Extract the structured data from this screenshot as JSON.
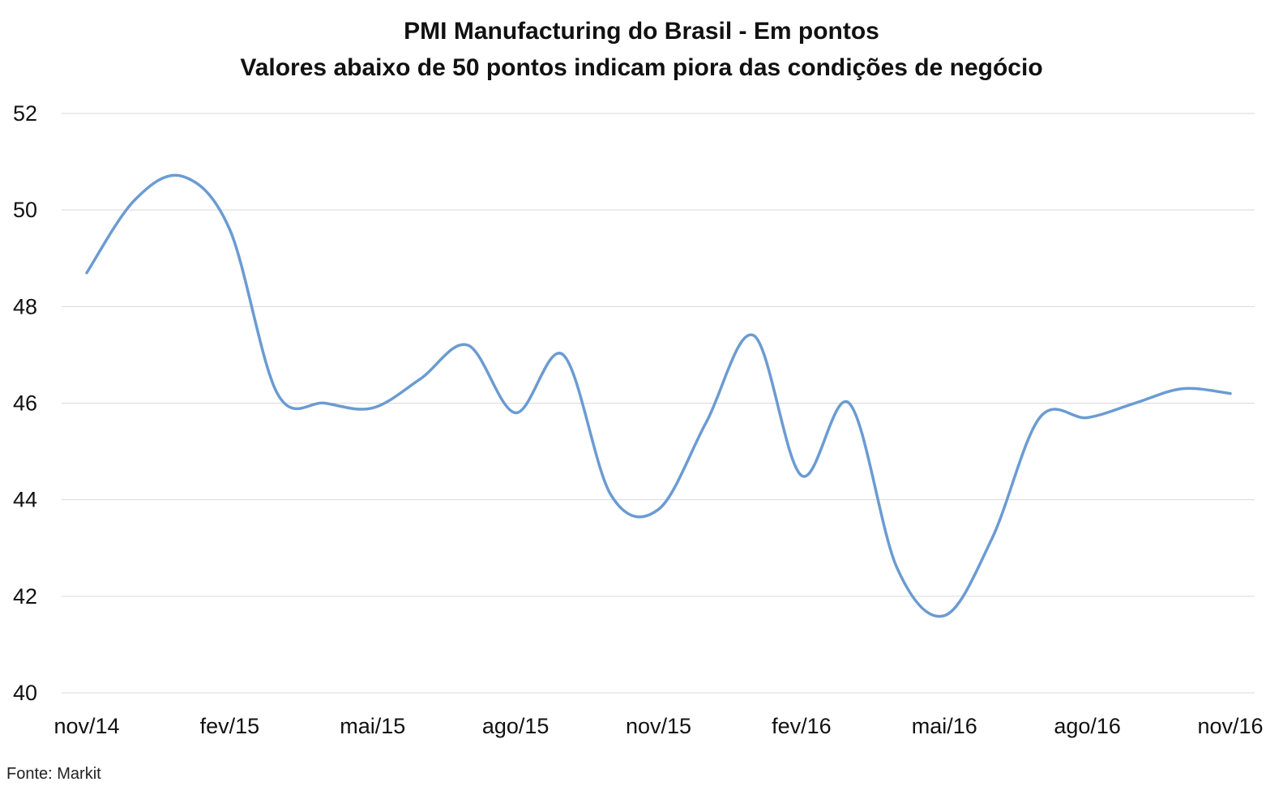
{
  "chart_data": {
    "type": "line",
    "title": "PMI Manufacturing do Brasil - Em pontos",
    "subtitle": "Valores abaixo de 50 pontos indicam piora das condições de negócio",
    "xlabel": "",
    "ylabel": "",
    "ylim": [
      40,
      52
    ],
    "yticks": [
      "40",
      "42",
      "44",
      "46",
      "48",
      "50",
      "52"
    ],
    "categories": [
      "nov/14",
      "dez/14",
      "jan/15",
      "fev/15",
      "mar/15",
      "abr/15",
      "mai/15",
      "jun/15",
      "jul/15",
      "ago/15",
      "set/15",
      "out/15",
      "nov/15",
      "dez/15",
      "jan/16",
      "fev/16",
      "mar/16",
      "abr/16",
      "mai/16",
      "jun/16",
      "jul/16",
      "ago/16",
      "set/16",
      "out/16",
      "nov/16"
    ],
    "xtick_labels": [
      "nov/14",
      "fev/15",
      "mai/15",
      "ago/15",
      "nov/15",
      "fev/16",
      "mai/16",
      "ago/16",
      "nov/16"
    ],
    "series": [
      {
        "values": [
          48.7,
          50.2,
          50.7,
          49.6,
          46.2,
          46.0,
          45.9,
          46.5,
          47.2,
          45.8,
          47.0,
          44.1,
          43.8,
          45.6,
          47.4,
          44.5,
          46.0,
          42.6,
          41.6,
          43.2,
          45.7,
          45.7,
          46.0,
          46.3,
          46.2
        ]
      }
    ],
    "grid": true,
    "legend": "none",
    "line_color": "#6b9bd2",
    "grid_color": "#d9d9d9"
  },
  "source": "Fonte: Markit"
}
